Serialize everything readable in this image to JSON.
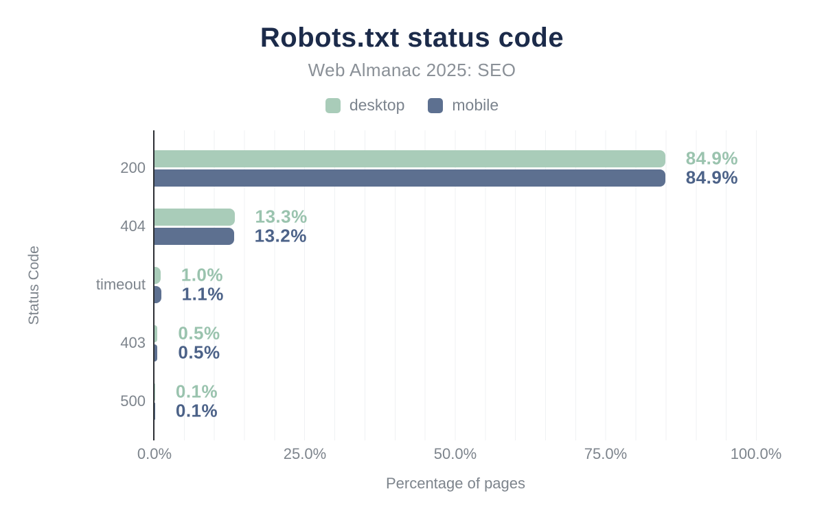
{
  "header": {
    "title": "Robots.txt status code",
    "subtitle": "Web Almanac 2025: SEO"
  },
  "legend": [
    {
      "label": "desktop",
      "color": "#a9ccb9"
    },
    {
      "label": "mobile",
      "color": "#5d7090"
    }
  ],
  "chart_data": {
    "type": "bar",
    "orientation": "horizontal",
    "title": "Robots.txt status code",
    "subtitle": "Web Almanac 2025: SEO",
    "categories": [
      "200",
      "404",
      "timeout",
      "403",
      "500"
    ],
    "series": [
      {
        "name": "desktop",
        "color": "#a9ccb9",
        "label_color": "#9ac3ae",
        "values": [
          84.9,
          13.3,
          1.0,
          0.5,
          0.1
        ],
        "value_labels": [
          "84.9%",
          "13.3%",
          "1.0%",
          "0.5%",
          "0.1%"
        ]
      },
      {
        "name": "mobile",
        "color": "#5d7090",
        "label_color": "#4c6288",
        "values": [
          84.9,
          13.2,
          1.1,
          0.5,
          0.1
        ],
        "value_labels": [
          "84.9%",
          "13.2%",
          "1.1%",
          "0.5%",
          "0.1%"
        ]
      }
    ],
    "xlabel": "Percentage of pages",
    "ylabel": "Status Code",
    "xlim": [
      0,
      100
    ],
    "x_ticks": [
      {
        "value": 0,
        "label": "0.0%"
      },
      {
        "value": 25,
        "label": "25.0%"
      },
      {
        "value": 50,
        "label": "50.0%"
      },
      {
        "value": 75,
        "label": "75.0%"
      },
      {
        "value": 100,
        "label": "100.0%"
      }
    ],
    "grid": {
      "vertical": true,
      "step_pct": 5,
      "color": "#eff1f3"
    },
    "legend_position": "top"
  }
}
